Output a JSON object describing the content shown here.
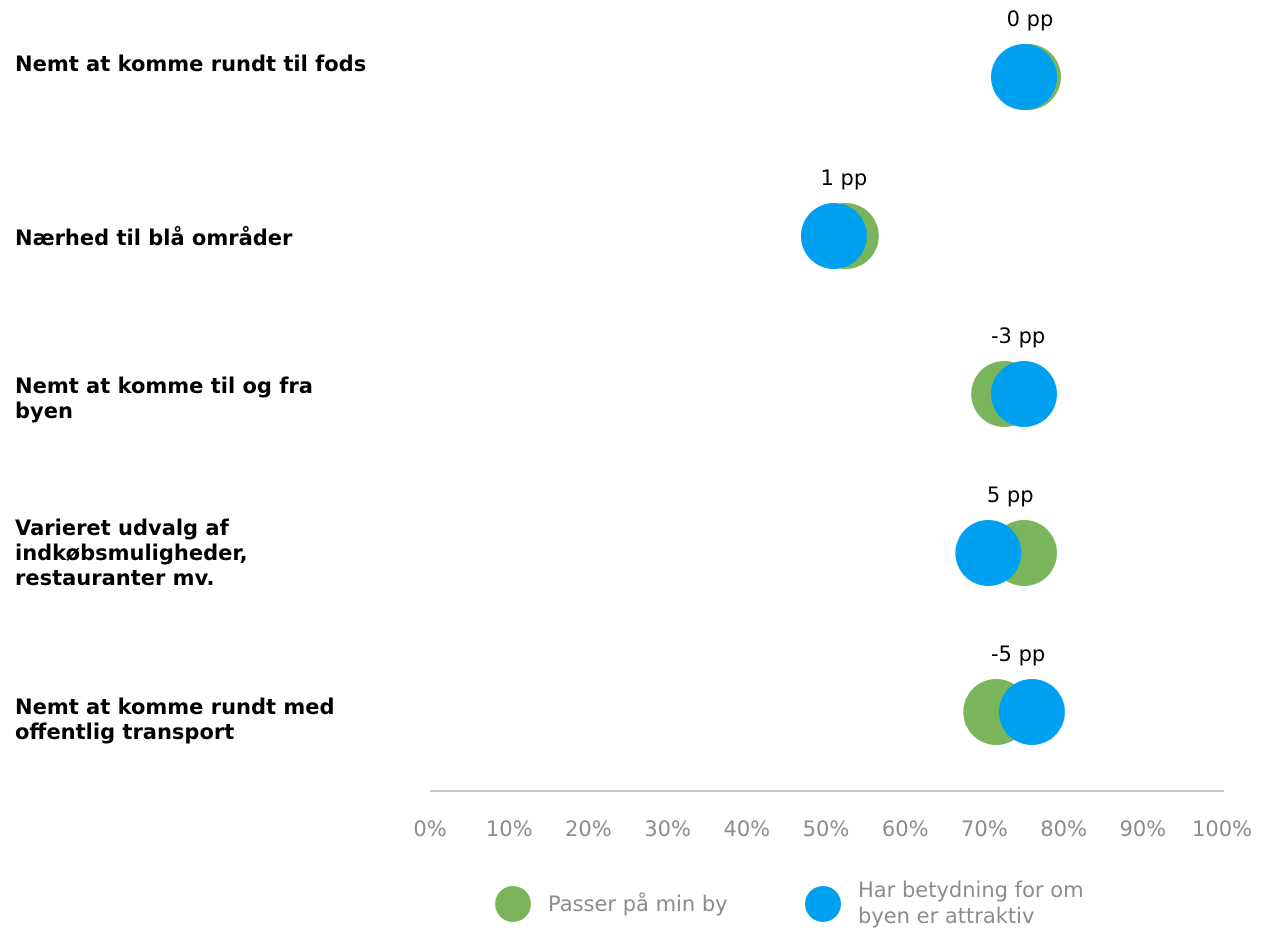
{
  "chart_data": {
    "type": "scatter",
    "categories": [
      "Nemt at komme rundt til fods",
      "Nærhed til blå områder",
      "Nemt at komme til og fra byen",
      "Varieret udvalg af indkøbsmuligheder, restauranter mv.",
      "Nemt at komme rundt med offentlig transport"
    ],
    "series": [
      {
        "name": "Passer på min by",
        "color": "#7ab55c",
        "values": [
          75.5,
          52.5,
          72.5,
          75,
          71.5
        ]
      },
      {
        "name": "Har betydning for om byen er attraktiv",
        "color": "#00a0f0",
        "values": [
          75,
          51,
          75,
          70.5,
          76
        ]
      }
    ],
    "difference_labels": [
      "0 pp",
      "1 pp",
      "-3 pp",
      "5 pp",
      "-5 pp"
    ],
    "x_ticks": [
      "0%",
      "10%",
      "20%",
      "30%",
      "40%",
      "50%",
      "60%",
      "70%",
      "80%",
      "90%",
      "100%"
    ],
    "xlim": [
      0,
      100
    ],
    "legend_position": "bottom",
    "grid": false
  },
  "legend": {
    "items": [
      {
        "label": "Passer på min by",
        "color": "#7ab55c"
      },
      {
        "label": "Har betydning for om byen er attraktiv",
        "color": "#00a0f0"
      }
    ]
  }
}
